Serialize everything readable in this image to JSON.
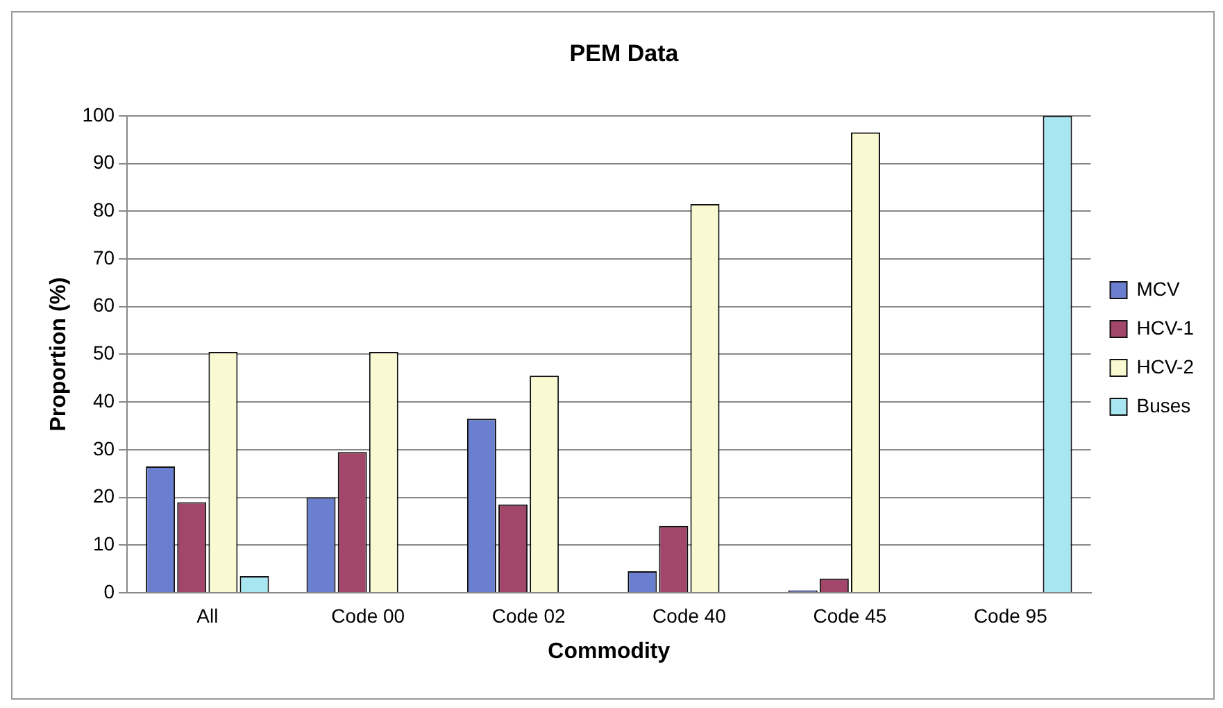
{
  "chart_data": {
    "type": "bar",
    "title": "PEM Data",
    "xlabel": "Commodity",
    "ylabel": "Proportion (%)",
    "categories": [
      "All",
      "Code 00",
      "Code 02",
      "Code 40",
      "Code 45",
      "Code 95"
    ],
    "series": [
      {
        "name": "MCV",
        "color": "#6a7fcf",
        "values": [
          26.5,
          20,
          36.5,
          4.5,
          0.5,
          0
        ]
      },
      {
        "name": "HCV-1",
        "color": "#a3476a",
        "values": [
          19,
          29.5,
          18.5,
          14,
          3,
          0
        ]
      },
      {
        "name": "HCV-2",
        "color": "#fafad2",
        "values": [
          50.5,
          50.5,
          45.5,
          81.5,
          96.5,
          0
        ]
      },
      {
        "name": "Buses",
        "color": "#a8e6f2",
        "values": [
          3.5,
          0,
          0,
          0,
          0,
          100
        ]
      }
    ],
    "ylim": [
      0,
      100
    ],
    "yticks": [
      0,
      10,
      20,
      30,
      40,
      50,
      60,
      70,
      80,
      90,
      100
    ],
    "grid": "y",
    "legend": "right"
  }
}
